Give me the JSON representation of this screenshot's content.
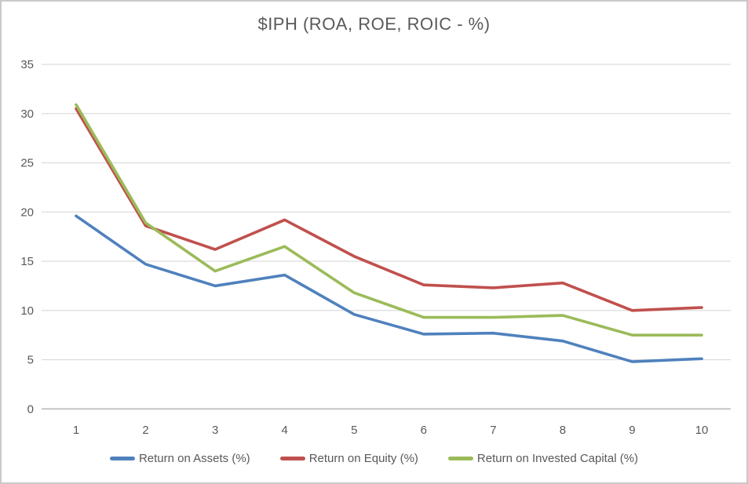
{
  "window": {
    "background_color": "#FFFFFF",
    "border_color": "#C9C9C9"
  },
  "chart_data": {
    "type": "line",
    "title": "$IPH (ROA, ROE, ROIC - %)",
    "categories": [
      1,
      2,
      3,
      4,
      5,
      6,
      7,
      8,
      9,
      10
    ],
    "series": [
      {
        "name": "Return on Assets (%)",
        "color": "#4F81BD",
        "values": [
          19.6,
          14.7,
          12.5,
          13.6,
          9.6,
          7.6,
          7.7,
          6.9,
          4.8,
          5.1
        ]
      },
      {
        "name": "Return on Equity (%)",
        "color": "#C0504D",
        "values": [
          30.5,
          18.6,
          16.2,
          19.2,
          15.5,
          12.6,
          12.3,
          12.8,
          10.0,
          10.3
        ]
      },
      {
        "name": "Return on Invested Capital (%)",
        "color": "#9BBB59",
        "values": [
          30.9,
          18.9,
          14.0,
          16.5,
          11.8,
          9.3,
          9.3,
          9.5,
          7.5,
          7.5
        ]
      }
    ],
    "y_ticks": [
      0,
      5,
      10,
      15,
      20,
      25,
      30,
      35
    ],
    "ylim": [
      0,
      35
    ],
    "grid": true,
    "legend_position": "bottom",
    "text_color": "#595959",
    "gridline_color": "#D9D9D9",
    "axis_line_color": "#C6C6C6"
  }
}
